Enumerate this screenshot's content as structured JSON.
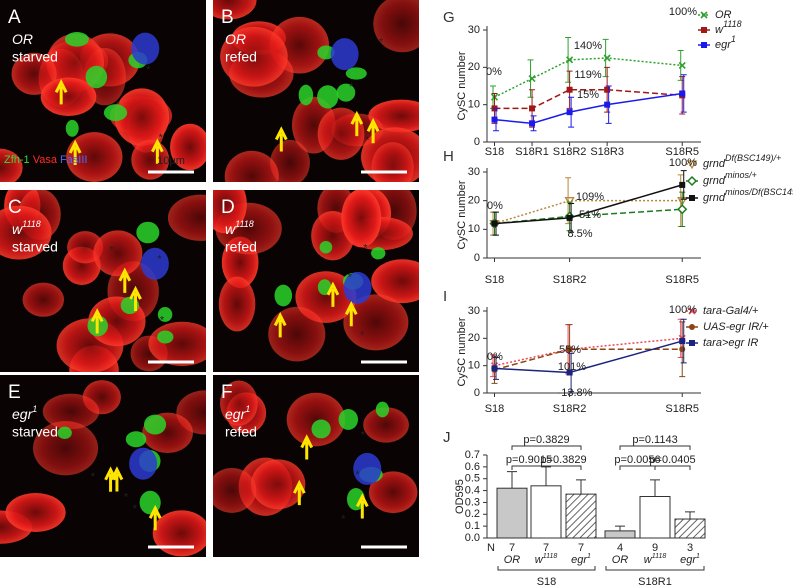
{
  "panels": [
    {
      "letter": "A",
      "genotype": "OR",
      "condition": "starved",
      "stain": [
        {
          "text": "Zfh-1",
          "color": "#39d839"
        },
        {
          "text": "Vasa",
          "color": "#ff2a2a"
        },
        {
          "text": "FasIII",
          "color": "#4a6cff"
        }
      ],
      "scale": "10μm"
    },
    {
      "letter": "B",
      "genotype": "OR",
      "condition": "refed"
    },
    {
      "letter": "C",
      "genotype": "w",
      "genotype_sup": "1118",
      "condition": "starved"
    },
    {
      "letter": "D",
      "genotype": "w",
      "genotype_sup": "1118",
      "condition": "refed"
    },
    {
      "letter": "E",
      "genotype": "egr",
      "genotype_sup": "1",
      "condition": "starved"
    },
    {
      "letter": "F",
      "genotype": "egr",
      "genotype_sup": "1",
      "condition": "refed"
    }
  ],
  "chart_data": [
    {
      "type": "line",
      "letter": "G",
      "ylabel": "CySC number",
      "x": [
        0,
        1,
        2,
        3,
        5
      ],
      "xlim": [
        -0.2,
        5.5
      ],
      "xticks": [
        {
          "value": 0,
          "label": "S18"
        },
        {
          "value": 1,
          "label": "S18R1"
        },
        {
          "value": 2,
          "label": "S18R2"
        },
        {
          "value": 3,
          "label": "S18R3"
        },
        {
          "value": 5,
          "label": "S18R5"
        }
      ],
      "ylim": [
        0,
        30
      ],
      "yticks": [
        0,
        10,
        20,
        30
      ],
      "series": [
        {
          "name": "OR",
          "color": "#2ea02e",
          "linestyle": "dotted",
          "marker": "x",
          "values": [
            12,
            17,
            22,
            22.5,
            20.5
          ],
          "errors": [
            3,
            5,
            6,
            5,
            4
          ]
        },
        {
          "name": "w",
          "name_sup": "1118",
          "color": "#a01818",
          "linestyle": "dashed",
          "marker": "square",
          "values": [
            9,
            9,
            14,
            14,
            12.5
          ],
          "errors": [
            4,
            5,
            5,
            6,
            5
          ]
        },
        {
          "name": "egr",
          "name_sup": "1",
          "color": "#1a1aee",
          "linestyle": "solid",
          "marker": "square",
          "values": [
            6,
            5,
            8,
            10,
            13
          ],
          "errors": [
            3,
            2,
            4,
            5,
            5
          ]
        }
      ],
      "annotations": [
        {
          "text": "0%",
          "color": "#222"
        },
        {
          "text": "140%",
          "color": "#2ea02e"
        },
        {
          "text": "119%",
          "color": "#a01818"
        },
        {
          "text": "15%",
          "color": "#1a1aee"
        },
        {
          "text": "100%",
          "color": "#222"
        }
      ]
    },
    {
      "type": "line",
      "letter": "H",
      "ylabel": "CySC number",
      "x": [
        0,
        2,
        5
      ],
      "xlim": [
        -0.2,
        5.5
      ],
      "xticks": [
        {
          "value": 0,
          "label": "S18"
        },
        {
          "value": 2,
          "label": "S18R2"
        },
        {
          "value": 5,
          "label": "S18R5"
        }
      ],
      "ylim": [
        0,
        30
      ],
      "yticks": [
        0,
        10,
        20,
        30
      ],
      "series": [
        {
          "name": "grnd",
          "name_sup": "Df(BSC149)/+",
          "color": "#b8863b",
          "linestyle": "dotted",
          "marker": "triangle",
          "values": [
            12,
            20,
            20
          ],
          "errors": [
            4,
            8,
            9
          ]
        },
        {
          "name": "grnd",
          "name_sup": "minos/+",
          "color": "#1e7a1e",
          "linestyle": "dashed",
          "marker": "diamond",
          "values": [
            12,
            14.5,
            17
          ],
          "errors": [
            4,
            5,
            6
          ]
        },
        {
          "name": "grnd",
          "name_sup": "minos/Df(BSC149)",
          "color": "#111111",
          "linestyle": "solid",
          "marker": "square",
          "values": [
            12,
            14,
            25.5
          ],
          "errors": [
            4,
            5,
            5
          ]
        }
      ],
      "annotations": [
        {
          "text": "0%",
          "color": "#222"
        },
        {
          "text": "109%",
          "color": "#b8863b"
        },
        {
          "text": "51%",
          "color": "#1e7a1e"
        },
        {
          "text": "8.5%",
          "color": "#111111"
        },
        {
          "text": "100%",
          "color": "#222"
        }
      ]
    },
    {
      "type": "line",
      "letter": "I",
      "ylabel": "CySC number",
      "x": [
        0,
        2,
        5
      ],
      "xlim": [
        -0.2,
        5.5
      ],
      "xticks": [
        {
          "value": 0,
          "label": "S18"
        },
        {
          "value": 2,
          "label": "S18R2"
        },
        {
          "value": 5,
          "label": "S18R5"
        }
      ],
      "ylim": [
        0,
        30
      ],
      "yticks": [
        0,
        10,
        20,
        30
      ],
      "series": [
        {
          "name": "tara-Gal4/+",
          "color": "#e8485a",
          "linestyle": "dotted",
          "marker": "x",
          "values": [
            10,
            16,
            20
          ],
          "errors": [
            4,
            9,
            7
          ]
        },
        {
          "name": "UAS-egr IR/+",
          "color": "#8b4513",
          "linestyle": "dashed",
          "marker": "dot",
          "values": [
            8.5,
            16,
            16
          ],
          "errors": [
            5,
            9,
            10
          ]
        },
        {
          "name": "tara>egr IR",
          "color": "#1a237e",
          "linestyle": "solid",
          "marker": "square",
          "values": [
            9,
            7.5,
            19
          ],
          "errors": [
            4,
            7,
            8
          ]
        }
      ],
      "annotations": [
        {
          "text": "0%",
          "color": "#222"
        },
        {
          "text": "55%",
          "color": "#e8485a"
        },
        {
          "text": "101%",
          "color": "#8b4513"
        },
        {
          "text": "-13.8%",
          "color": "#1a237e"
        },
        {
          "text": "100%",
          "color": "#222"
        }
      ]
    },
    {
      "type": "bar",
      "letter": "J",
      "ylabel": "OD595",
      "categories": [
        "OR",
        "w",
        "egr",
        "OR",
        "w",
        "egr"
      ],
      "category_sups": [
        null,
        "1118",
        "1",
        null,
        "1118",
        "1"
      ],
      "groups": [
        "S18",
        "S18R1"
      ],
      "n_label": "N",
      "n": [
        7,
        7,
        7,
        4,
        9,
        3
      ],
      "values": [
        0.42,
        0.44,
        0.37,
        0.06,
        0.35,
        0.16
      ],
      "errors": [
        0.14,
        0.16,
        0.12,
        0.04,
        0.14,
        0.06
      ],
      "fills": [
        "#c8c8c8",
        "#ffffff",
        "hatch",
        "#c8c8c8",
        "#ffffff",
        "hatch"
      ],
      "ylim": [
        0,
        0.7
      ],
      "yticks": [
        {
          "value": 0,
          "label": "0.0"
        },
        0.1,
        0.2,
        0.3,
        0.4,
        0.5,
        0.6,
        0.7
      ],
      "pvalues": [
        "p=0.3829",
        "p=0.9015",
        "p=0.3829",
        "p=0.1143",
        "p=0.0056",
        "p=0.0405"
      ]
    }
  ]
}
